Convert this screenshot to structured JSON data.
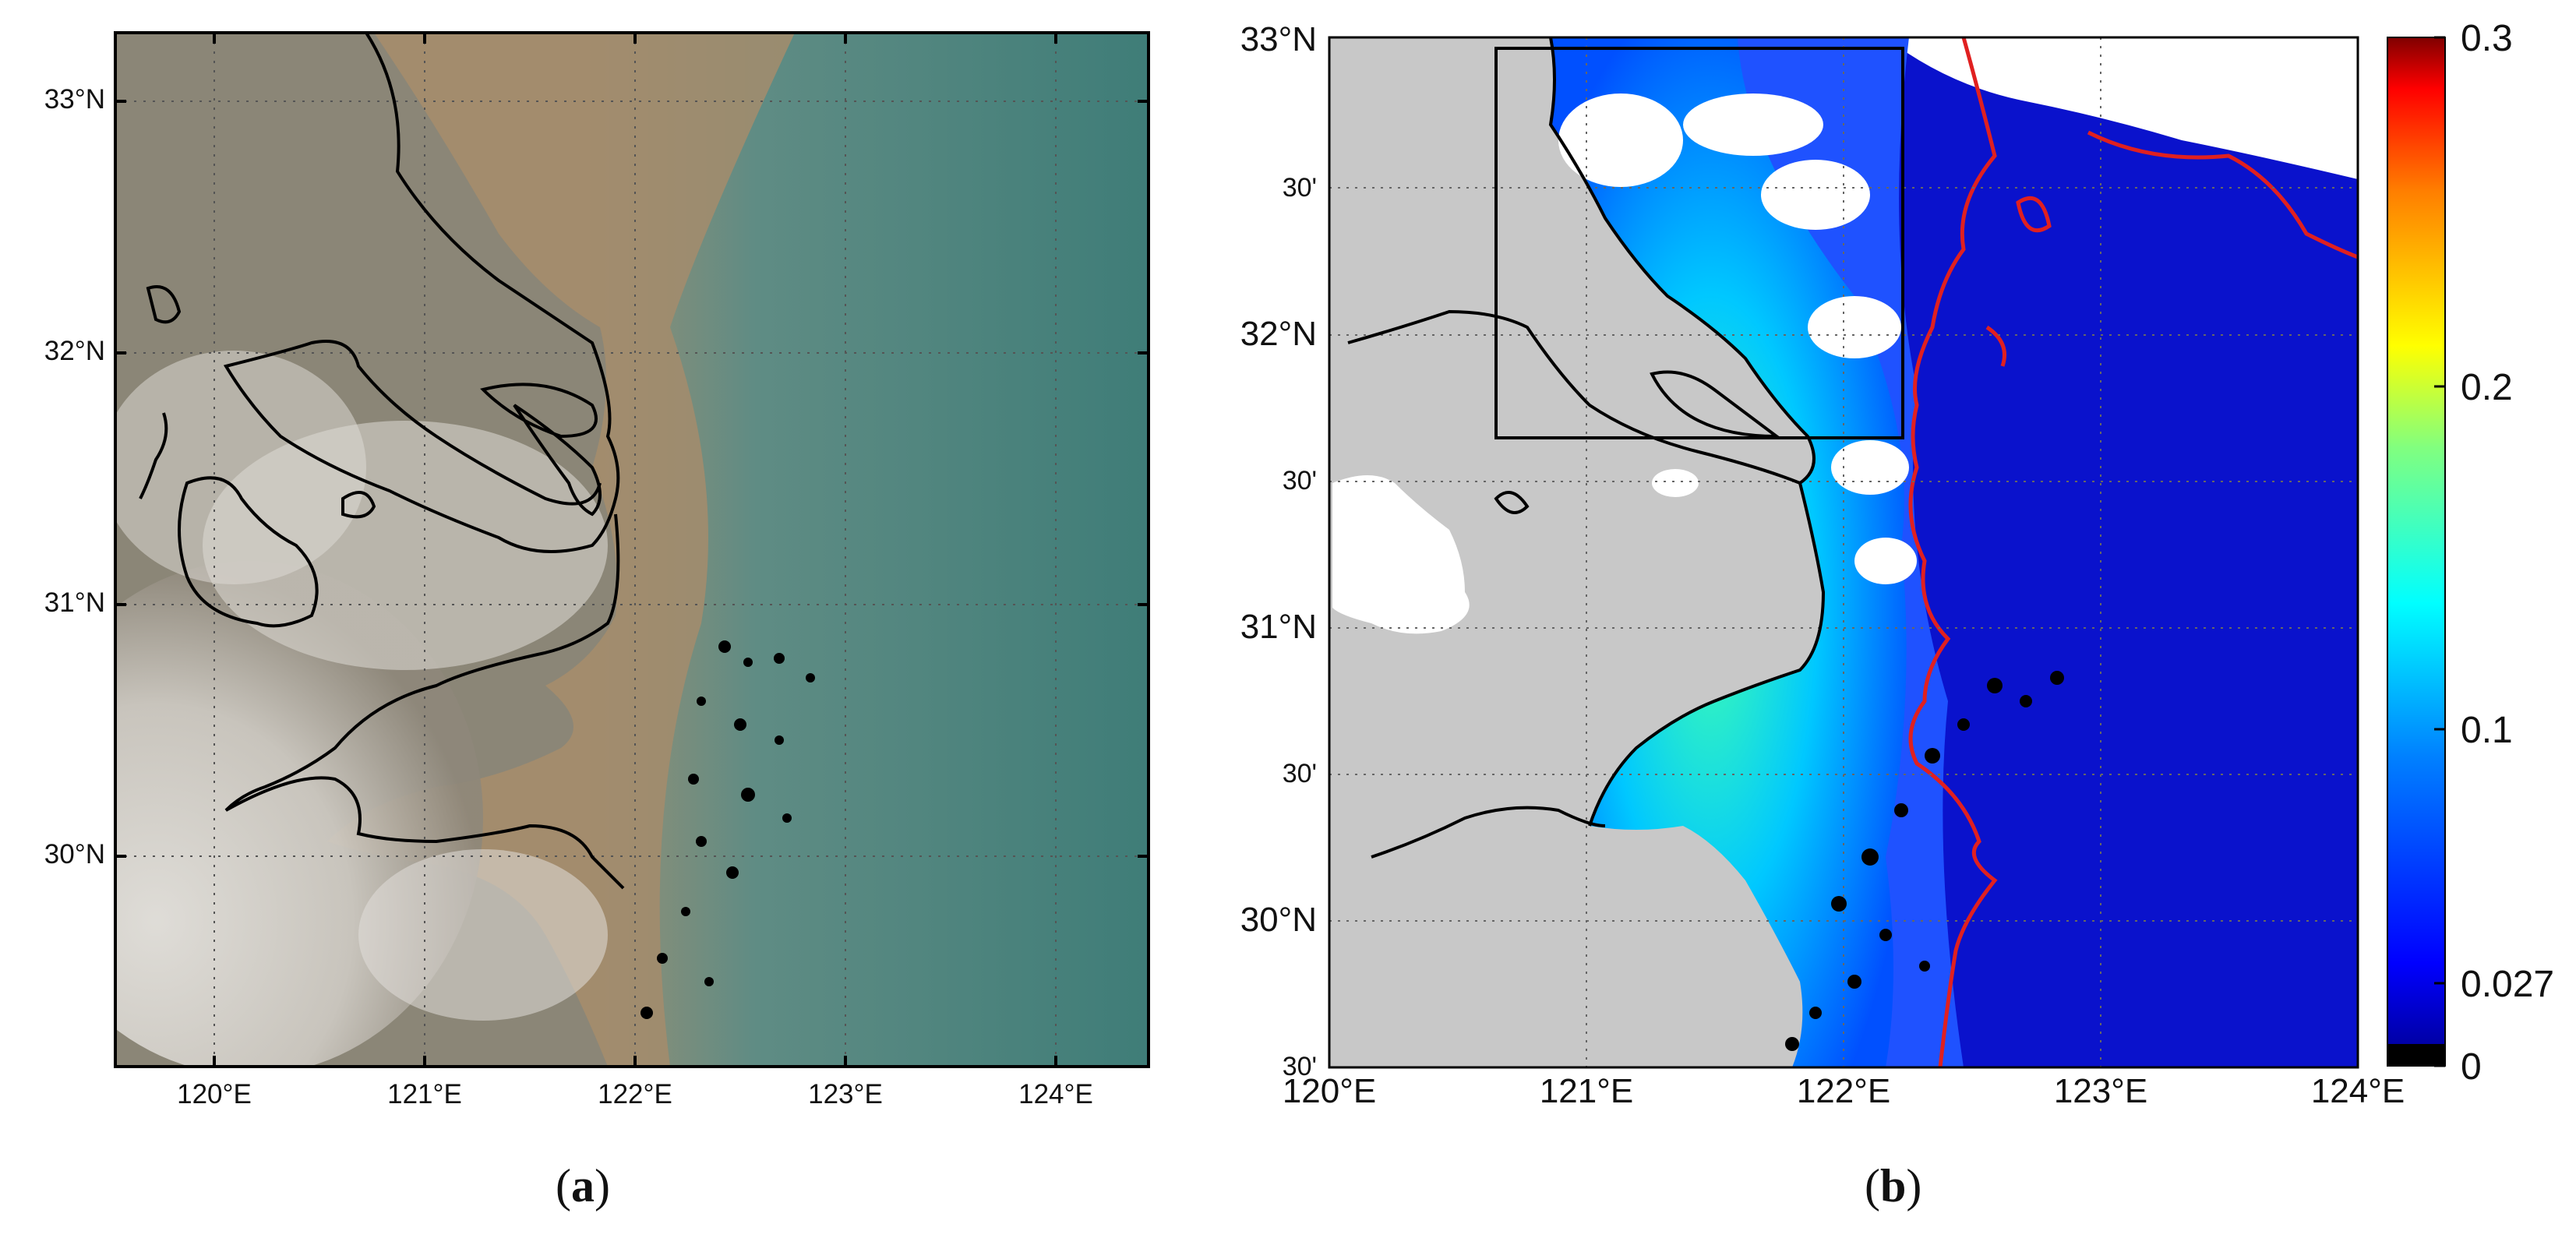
{
  "panel_a": {
    "label_open": "(",
    "label_letter": "a",
    "label_close": ")",
    "lat_labels": [
      "33°N",
      "32°N",
      "31°N",
      "30°N"
    ],
    "lon_labels": [
      "120°E",
      "121°E",
      "122°E",
      "123°E",
      "124°E"
    ]
  },
  "panel_b": {
    "label_open": "(",
    "label_letter": "b",
    "label_close": ")",
    "lat_labels": [
      "33°N",
      "30'",
      "32°N",
      "30'",
      "31°N",
      "30'",
      "30°N",
      "30'"
    ],
    "lon_labels": [
      "120°E",
      "121°E",
      "122°E",
      "123°E",
      "124°E"
    ],
    "colorbar": {
      "tick_labels": [
        "0.3",
        "0.2",
        "0.1",
        "0.027",
        "0"
      ],
      "tick_values": [
        0.3,
        0.2,
        0.1,
        0.027,
        0
      ],
      "range": [
        0,
        0.3
      ],
      "colormap": "jet"
    }
  },
  "colors": {
    "coastline": "#000000",
    "red_contour": "#e02020",
    "land_gray": "#c8c8c8",
    "sediment_water": "#a88e6e",
    "sea_teal": "#4f8a85",
    "deep_blue": "#0a14c8"
  }
}
